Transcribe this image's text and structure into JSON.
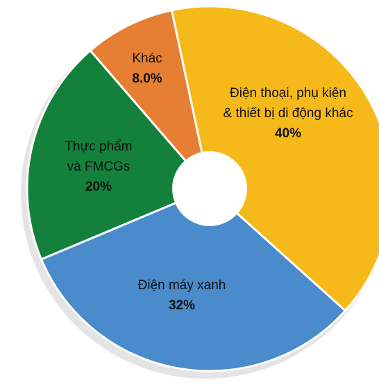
{
  "chart_data": {
    "type": "donut",
    "categories": [
      "Điện thoại, phụ kiện\n& thiết bị di động khác",
      "Điện máy xanh",
      "Thực phẩm\nvà FMCGs",
      "Khác"
    ],
    "values": [
      40,
      32,
      20,
      8
    ],
    "value_labels": [
      "40%",
      "32%",
      "20%",
      "8.0%"
    ],
    "colors": [
      "#f5b919",
      "#4a8bcc",
      "#13813c",
      "#e67e33"
    ]
  }
}
